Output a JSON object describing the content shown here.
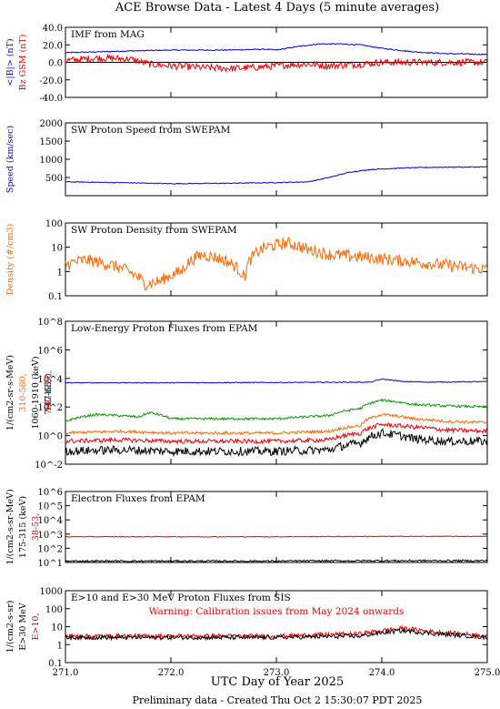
{
  "page": {
    "title": "ACE Browse Data - Latest 4 Days (5 minute averages)",
    "x_label": "UTC Day of Year 2025",
    "footer": "Preliminary data - Created Thu Oct  2 15:30:07 PDT 2025",
    "x_ticks": [
      "271.0",
      "272.0",
      "273.0",
      "274.0",
      "275.0"
    ],
    "x_range": [
      271.0,
      275.0
    ]
  },
  "colors": {
    "blue": "#0000dd",
    "red": "#ee0000",
    "orange": "#ff6600",
    "green": "#009900",
    "black": "#000000",
    "warning": "#dd0000"
  },
  "chart_data": [
    {
      "id": "imf",
      "type": "line",
      "title": "IMF from MAG",
      "ylabel_lines": [
        {
          "text": "<|B|> (nT)",
          "color": "#0000dd"
        },
        {
          "text": "Bz GSM (nT)",
          "color": "#ee0000"
        }
      ],
      "ylim": [
        -40,
        40
      ],
      "log": false,
      "yticks": [
        "40.0",
        "20.0",
        "0.0",
        "-20.0",
        "-40.0"
      ],
      "zero_line": true,
      "series": [
        {
          "name": "<|B|>",
          "color": "#0000dd",
          "noise": 0.6,
          "x": [
            271.0,
            271.3,
            271.6,
            272.0,
            272.5,
            272.9,
            273.0,
            273.2,
            273.4,
            273.6,
            273.8,
            274.0,
            274.3,
            274.6,
            275.0
          ],
          "y": [
            11,
            12,
            13,
            14,
            14,
            15,
            14,
            18,
            21,
            21,
            20,
            16,
            12,
            10,
            9
          ]
        },
        {
          "name": "Bz GSM",
          "color": "#ee0000",
          "noise": 4,
          "x": [
            271.0,
            271.3,
            271.6,
            271.8,
            272.0,
            272.3,
            272.6,
            272.9,
            273.1,
            273.3,
            273.5,
            273.8,
            274.0,
            274.3,
            274.6,
            275.0
          ],
          "y": [
            2,
            5,
            4,
            -2,
            -4,
            -6,
            -7,
            -5,
            -3,
            -2,
            -4,
            -2,
            0,
            0,
            0,
            0
          ]
        }
      ]
    },
    {
      "id": "speed",
      "type": "line",
      "title": "SW Proton Speed from SWEPAM",
      "ylabel_lines": [
        {
          "text": "Speed (km/sec)",
          "color": "#0000dd"
        }
      ],
      "ylim": [
        0,
        2000
      ],
      "log": false,
      "yticks": [
        "2000",
        "1500",
        "1000",
        "500",
        ""
      ],
      "series": [
        {
          "name": "Speed",
          "color": "#0000dd",
          "noise": 12,
          "x": [
            271.0,
            271.5,
            272.0,
            272.5,
            273.0,
            273.3,
            273.5,
            273.7,
            273.9,
            274.2,
            274.5,
            275.0
          ],
          "y": [
            380,
            360,
            330,
            340,
            360,
            380,
            500,
            650,
            720,
            760,
            780,
            790
          ]
        }
      ]
    },
    {
      "id": "density",
      "type": "line",
      "title": "SW Proton Density from SWEPAM",
      "ylabel_lines": [
        {
          "text": "Density (#/cm3)",
          "color": "#ff6600"
        }
      ],
      "ylim": [
        0.1,
        100
      ],
      "log": true,
      "yticks": [
        "100",
        "10",
        "1",
        "0.1"
      ],
      "series": [
        {
          "name": "Density",
          "color": "#ff6600",
          "noise": 0.25,
          "x": [
            271.0,
            271.2,
            271.4,
            271.6,
            271.75,
            271.9,
            272.1,
            272.3,
            272.5,
            272.7,
            272.9,
            273.1,
            273.3,
            273.5,
            273.8,
            274.1,
            274.5,
            274.8,
            275.0
          ],
          "y": [
            2,
            3,
            2,
            1,
            0.3,
            0.4,
            1,
            5,
            3,
            0.5,
            10,
            15,
            8,
            5,
            4,
            3,
            2,
            1.5,
            1.2
          ]
        }
      ]
    },
    {
      "id": "epam-protons",
      "type": "line",
      "title": "Low-Energy Proton Fluxes from EPAM",
      "ylabel_lines": [
        {
          "text": "1/(cm2-sr-s-MeV)",
          "color": "#000000"
        },
        {
          "text": "310-580,",
          "color": "#ff6600"
        },
        {
          "text": "1060-1910 (keV)",
          "color": "#000000"
        },
        {
          "text": "112-187,",
          "color": "#009900"
        },
        {
          "text": "47-65,",
          "color": "#0000dd"
        },
        {
          "text": "761-1220,",
          "color": "#ee0000"
        }
      ],
      "ylim": [
        0.01,
        100000000
      ],
      "log": true,
      "yticks": [
        "10^8",
        "10^6",
        "10^4",
        "10^2",
        "10^0",
        "10^-2"
      ],
      "series": [
        {
          "name": "47-65",
          "color": "#0000dd",
          "noise": 0.03,
          "x": [
            271.0,
            272.0,
            273.0,
            273.9,
            274.0,
            274.2,
            274.5,
            275.0
          ],
          "y": [
            5000,
            5000,
            5200,
            5500,
            9000,
            6000,
            5500,
            6000
          ]
        },
        {
          "name": "112-187",
          "color": "#009900",
          "noise": 0.08,
          "x": [
            271.0,
            271.3,
            271.7,
            271.8,
            272.0,
            272.5,
            273.0,
            273.5,
            273.8,
            274.0,
            274.3,
            274.6,
            275.0
          ],
          "y": [
            10,
            30,
            20,
            40,
            15,
            15,
            15,
            25,
            80,
            300,
            150,
            120,
            100
          ]
        },
        {
          "name": "310-580",
          "color": "#ff6600",
          "noise": 0.1,
          "x": [
            271.0,
            271.5,
            272.0,
            272.5,
            273.0,
            273.5,
            273.8,
            274.0,
            274.3,
            274.6,
            275.0
          ],
          "y": [
            1.5,
            2,
            1.5,
            1.5,
            1.5,
            2,
            5,
            30,
            15,
            10,
            8
          ]
        },
        {
          "name": "761-1220",
          "color": "#ee0000",
          "noise": 0.15,
          "x": [
            271.0,
            271.5,
            272.0,
            272.5,
            273.0,
            273.5,
            273.8,
            274.0,
            274.3,
            274.6,
            275.0
          ],
          "y": [
            0.4,
            0.5,
            0.4,
            0.4,
            0.4,
            0.5,
            1.5,
            6,
            4,
            2.5,
            2
          ]
        },
        {
          "name": "1060-1910",
          "color": "#000000",
          "noise": 0.3,
          "x": [
            271.0,
            271.5,
            272.0,
            272.5,
            273.0,
            273.5,
            273.8,
            274.0,
            274.3,
            274.6,
            275.0
          ],
          "y": [
            0.08,
            0.1,
            0.08,
            0.08,
            0.08,
            0.1,
            0.3,
            1.5,
            0.6,
            0.4,
            0.4
          ]
        }
      ]
    },
    {
      "id": "epam-electrons",
      "type": "line",
      "title": "Electron Fluxes from EPAM",
      "ylabel_lines": [
        {
          "text": "1/(cm2-s-sr-MeV)",
          "color": "#000000"
        },
        {
          "text": "175-315 (keV)",
          "color": "#000000"
        },
        {
          "text": "38-53,",
          "color": "#ee0000"
        }
      ],
      "ylim": [
        10,
        10000000
      ],
      "log": true,
      "yticks": [
        "10^6",
        "10^5",
        "10^4",
        "10^3",
        "10^2",
        "10^1"
      ],
      "series": [
        {
          "name": "38-53",
          "color": "#ee0000",
          "noise": 0.03,
          "x": [
            271.0,
            272.0,
            273.0,
            274.0,
            275.0
          ],
          "y": [
            1500,
            1500,
            1500,
            1600,
            1600
          ]
        },
        {
          "name": "175-315",
          "color": "#000000",
          "noise": 0.08,
          "x": [
            271.0,
            272.0,
            273.0,
            274.0,
            275.0
          ],
          "y": [
            13,
            13,
            13,
            14,
            14
          ]
        }
      ]
    },
    {
      "id": "sis",
      "type": "line",
      "title": "E>10 and E>30 MeV Proton Fluxes from SIS",
      "ylabel_lines": [
        {
          "text": "1/(cm2-s-sr)",
          "color": "#000000"
        },
        {
          "text": "E>30 MeV",
          "color": "#000000"
        },
        {
          "text": "E>10,",
          "color": "#ee0000"
        }
      ],
      "ylim": [
        0.1,
        1000
      ],
      "log": true,
      "yticks": [
        "1000",
        "100",
        "10",
        "1",
        "0.1"
      ],
      "annotation": "Warning: Calibration issues from May 2024 onwards",
      "series": [
        {
          "name": "E>10",
          "color": "#ee0000",
          "noise": 0.12,
          "x": [
            271.0,
            272.0,
            273.0,
            273.8,
            274.2,
            274.5,
            275.0
          ],
          "y": [
            3,
            3,
            3,
            4,
            8,
            5,
            3
          ]
        },
        {
          "name": "E>30",
          "color": "#000000",
          "noise": 0.12,
          "x": [
            271.0,
            272.0,
            273.0,
            273.8,
            274.2,
            274.5,
            275.0
          ],
          "y": [
            2.5,
            2.5,
            2.5,
            3,
            6,
            4,
            2.5
          ]
        }
      ]
    }
  ]
}
